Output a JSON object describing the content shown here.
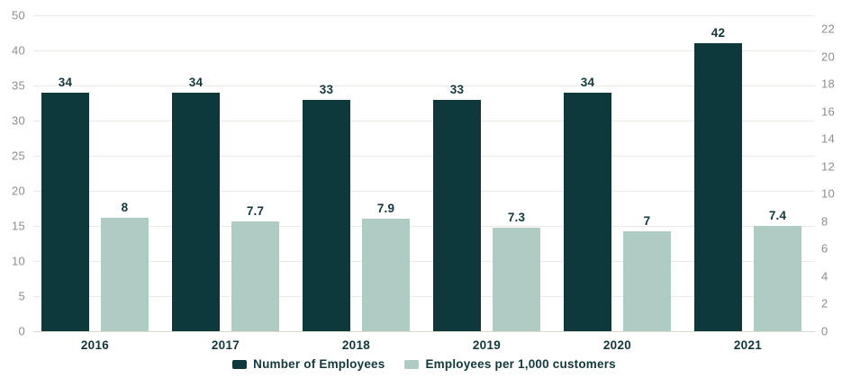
{
  "colors": {
    "employees_bar": "#0e393c",
    "per_1000_bar": "#afccc4",
    "gridline": "#ece9e2",
    "baseline": "#dcd8d0",
    "axis_text": "#8f8e8b",
    "dark_text": "#12383c",
    "background": "#ffffff"
  },
  "chart_data": {
    "type": "bar",
    "title": "",
    "categories": [
      "2016",
      "2017",
      "2018",
      "2019",
      "2020",
      "2021"
    ],
    "series": [
      {
        "name": "Number of Employees",
        "axis": "left",
        "color": "#0e393c",
        "values": [
          34,
          34,
          33,
          33,
          34,
          42
        ],
        "labels": [
          "34",
          "34",
          "33",
          "33",
          "34",
          "42"
        ]
      },
      {
        "name": "Employees per 1,000 customers",
        "axis": "right",
        "color": "#afccc4",
        "values": [
          8,
          7.7,
          7.9,
          7.3,
          7,
          7.4
        ],
        "labels": [
          "8",
          "7.7",
          "7.9",
          "7.3",
          "7",
          "7.4"
        ]
      }
    ],
    "left_axis": {
      "tick_labels": [
        "50",
        "40",
        "35",
        "30",
        "25",
        "20",
        "15",
        "10",
        "5",
        "0"
      ],
      "range": [
        0,
        50
      ]
    },
    "right_axis": {
      "tick_labels": [
        "22",
        "20",
        "18",
        "16",
        "14",
        "12",
        "10",
        "8",
        "6",
        "4",
        "2",
        "0"
      ],
      "range": [
        0,
        22
      ]
    },
    "grid": true,
    "legend_position": "bottom"
  }
}
